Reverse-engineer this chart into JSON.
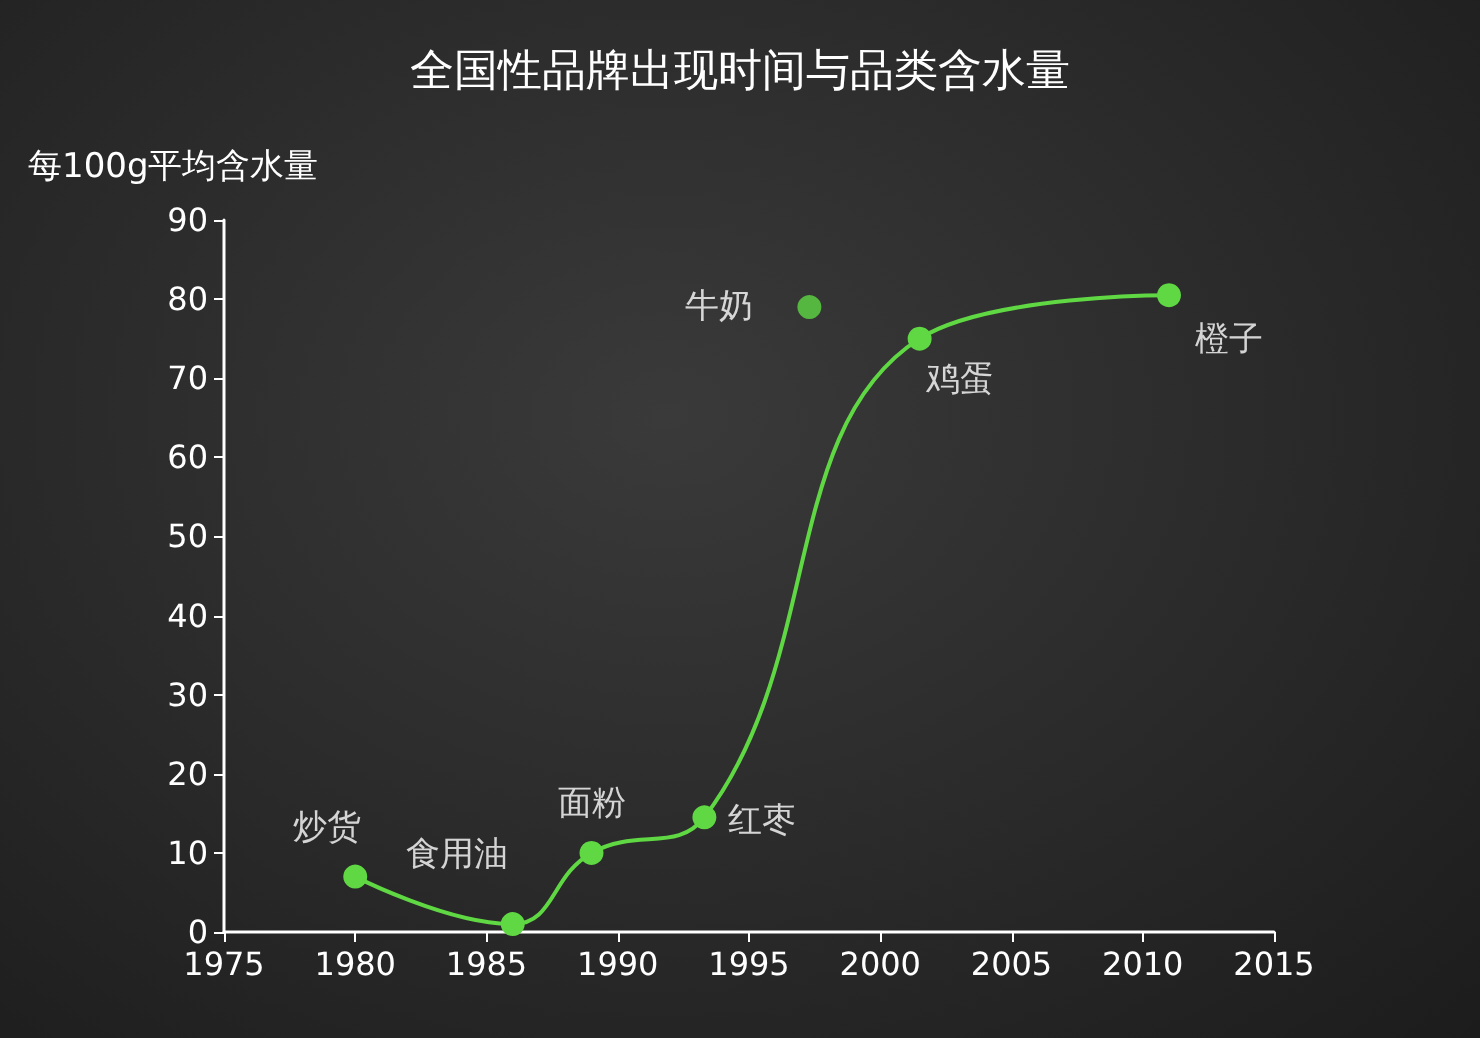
{
  "chart_data": {
    "type": "line",
    "title": "全国性品牌出现时间与品类含水量",
    "ylabel": "每100g平均含水量",
    "series": [
      {
        "type": "line",
        "color": "#5fd843",
        "x": [
          1980,
          1986,
          1989,
          1993.3,
          2001.5,
          2011
        ],
        "values": [
          7,
          1,
          10,
          14.5,
          75,
          80.5
        ]
      },
      {
        "type": "scatter",
        "color": "#5fd843",
        "x": [
          1997.3
        ],
        "values": [
          79
        ]
      }
    ],
    "annotations": [
      {
        "text": "炒货",
        "x": 1980,
        "y": 7
      },
      {
        "text": "食用油",
        "x": 1986,
        "y": 1
      },
      {
        "text": "面粉",
        "x": 1989,
        "y": 10
      },
      {
        "text": "红枣",
        "x": 1993.3,
        "y": 14.5
      },
      {
        "text": "牛奶",
        "x": 1997.3,
        "y": 79
      },
      {
        "text": "鸡蛋",
        "x": 2001.5,
        "y": 75
      },
      {
        "text": "橙子",
        "x": 2011,
        "y": 80.5
      }
    ],
    "xlim": [
      1975,
      2015
    ],
    "xticks": [
      1975,
      1980,
      1985,
      1990,
      1995,
      2000,
      2005,
      2010,
      2015
    ],
    "ylim": [
      0,
      90
    ],
    "yticks": [
      0,
      10,
      20,
      30,
      40,
      50,
      60,
      70,
      80,
      90
    ],
    "grid": false,
    "marker": "circle",
    "line_style": "solid"
  }
}
